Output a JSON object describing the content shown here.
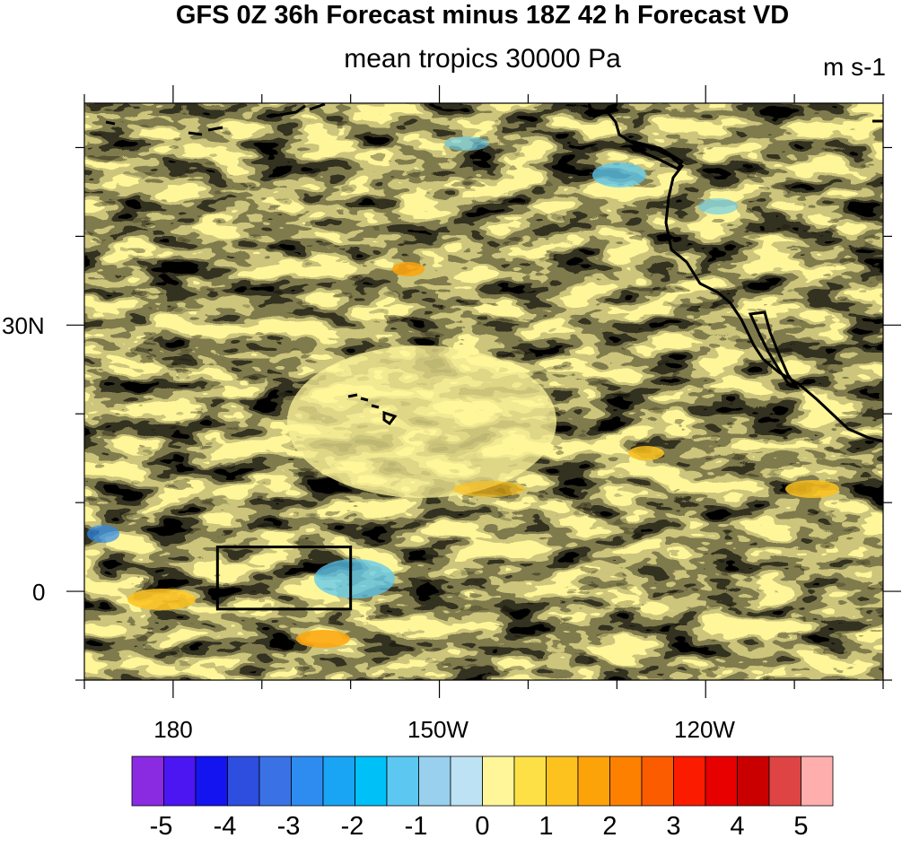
{
  "title": "GFS 0Z 36h Forecast minus 18Z 42 h Forecast VD",
  "subtitle": "mean tropics 30000 Pa",
  "units": "m s-1",
  "map": {
    "y_ticks": [
      {
        "label": "30N",
        "lat": 30
      },
      {
        "label": "0",
        "lat": 0
      }
    ],
    "x_ticks": [
      {
        "label": "180",
        "lon": 180
      },
      {
        "label": "150W",
        "lon": 210
      },
      {
        "label": "120W",
        "lon": 240
      }
    ],
    "lon_range": [
      170,
      260
    ],
    "lat_range": [
      -10,
      55
    ],
    "highlight_box": {
      "lon": [
        185,
        200
      ],
      "lat": [
        -2,
        5
      ]
    },
    "coastlines": [
      "North America west coast",
      "Baja California",
      "Hawaiian Islands",
      "Aleutian Islands"
    ]
  },
  "colorbar": {
    "labels": [
      "-5",
      "-4",
      "-3",
      "-2",
      "-1",
      "0",
      "1",
      "2",
      "3",
      "4",
      "5"
    ],
    "colors": [
      "#8a2be2",
      "#4b16f2",
      "#1414f0",
      "#2e4ee0",
      "#3a72e6",
      "#2e8cf0",
      "#1aa4f4",
      "#00c0f8",
      "#5cc8f2",
      "#98d0ee",
      "#bde2f4",
      "#fff69a",
      "#fde046",
      "#fdc21e",
      "#fda30a",
      "#fd8000",
      "#fb5c00",
      "#fb1c00",
      "#e60000",
      "#c80000",
      "#de4444",
      "#ffaeae"
    ]
  }
}
